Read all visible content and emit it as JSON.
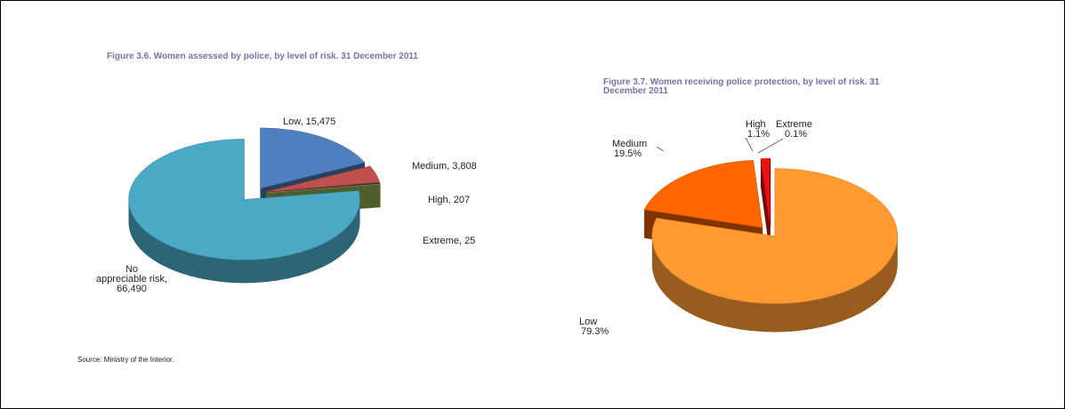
{
  "chart_data": [
    {
      "type": "pie3d",
      "title": "Figure 3.6. Women assessed by police, by level of risk. 31 December 2011",
      "values": [
        15475,
        3808,
        207,
        25,
        66490
      ],
      "value_labels": [
        "Low, 15,475",
        "Medium, 3,808",
        "High, 207",
        "Extreme, 25",
        "No appreciable risk, 66,490"
      ],
      "colors": [
        "#4f7fbf",
        "#c0504d",
        "#3d2f5b",
        "#9bbb59",
        "#4aa9c4"
      ],
      "source": "Source: Ministry of the Interior."
    },
    {
      "type": "pie3d",
      "title": "Figure 3.7. Women receiving police protection, by level of risk. 31 December 2011",
      "categories": [
        "Low",
        "Medium",
        "High",
        "Extreme"
      ],
      "values": [
        79.3,
        19.5,
        1.1,
        0.1
      ],
      "value_labels": [
        "79.3%",
        "19.5%",
        "1.1%",
        "0.1%"
      ],
      "colors": [
        "#ff9a33",
        "#ff6600",
        "#ee1111",
        "#990000"
      ]
    }
  ]
}
